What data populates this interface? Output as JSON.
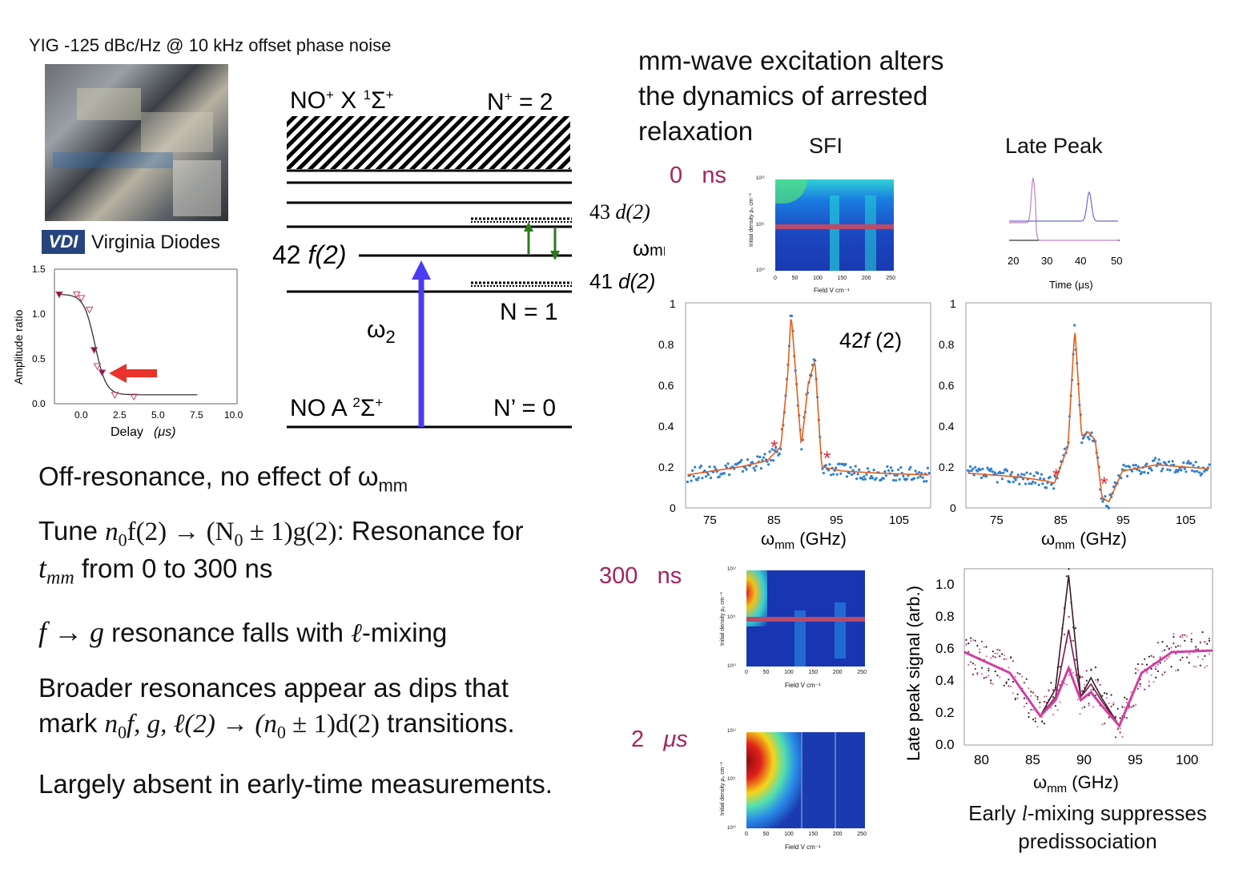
{
  "left": {
    "yig_label": "YIG -125 dBc/Hz @ 10 kHz offset phase noise",
    "vdi_logo": "VDI",
    "vdi_text": "Virginia Diodes",
    "amp_chart": {
      "ylabel": "Amplitude ratio",
      "xlabel": "Delay",
      "xlabel_unit": "(μs)",
      "yticks": [
        "1.5",
        "1.0",
        "0.5",
        "0.0"
      ],
      "xticks": [
        "0.0",
        "2.5",
        "5.0",
        "7.5",
        "10.0"
      ]
    }
  },
  "chart_data": [
    {
      "type": "scatter",
      "ylabel": "Amplitude ratio",
      "xlabel": "Delay (μs)",
      "xlim": [
        -1.5,
        10.0
      ],
      "ylim": [
        0.0,
        1.5
      ],
      "series": [
        {
          "name": "",
          "x": [
            -1.2,
            -0.1,
            0.2,
            0.7,
            1.0,
            1.2,
            1.5,
            2.3,
            3.5
          ],
          "y": [
            1.22,
            1.22,
            1.18,
            1.05,
            0.6,
            0.42,
            0.35,
            0.1,
            0.08
          ]
        }
      ]
    },
    {
      "type": "line",
      "xlabel": "ωmm (GHz)",
      "xlim": [
        72,
        108
      ],
      "ylim": [
        0,
        1
      ],
      "series": [
        {
          "name": "",
          "x": [
            72,
            80,
            84,
            86,
            87,
            87.5,
            89,
            90,
            91,
            92,
            95,
            100,
            108
          ],
          "y": [
            0.16,
            0.2,
            0.23,
            0.3,
            0.65,
            0.95,
            0.3,
            0.6,
            0.72,
            0.2,
            0.18,
            0.17,
            0.16
          ]
        }
      ]
    },
    {
      "type": "line",
      "xlabel": "ωmm (GHz)",
      "xlim": [
        72,
        108
      ],
      "ylim": [
        0,
        1
      ],
      "series": [
        {
          "name": "",
          "x": [
            72,
            80,
            84,
            85,
            87,
            88,
            89,
            90,
            91,
            92,
            93,
            95,
            100,
            108
          ],
          "y": [
            0.17,
            0.15,
            0.13,
            0.12,
            0.3,
            0.88,
            0.35,
            0.37,
            0.33,
            0.05,
            0.03,
            0.18,
            0.21,
            0.19
          ]
        }
      ]
    },
    {
      "type": "line",
      "ylabel": "Late peak signal (arb.)",
      "xlabel": "ωmm (GHz)",
      "xlim": [
        77.5,
        102
      ],
      "ylim": [
        0.0,
        1.1
      ],
      "series": [
        {
          "name": "",
          "x": [
            77.5,
            82,
            85,
            86.5,
            87.8,
            89,
            90,
            91,
            92.8,
            95,
            98,
            102
          ],
          "y": [
            0.58,
            0.45,
            0.18,
            0.35,
            1.06,
            0.3,
            0.42,
            0.3,
            0.12,
            0.45,
            0.58,
            0.59
          ]
        },
        {
          "name": "",
          "x": [
            77.5,
            82,
            85,
            86.5,
            87.8,
            89,
            90,
            91,
            92.8,
            95,
            98,
            102
          ],
          "y": [
            0.58,
            0.45,
            0.18,
            0.3,
            0.72,
            0.3,
            0.38,
            0.28,
            0.12,
            0.45,
            0.58,
            0.59
          ]
        },
        {
          "name": "",
          "x": [
            77.5,
            82,
            85,
            86.5,
            87.8,
            89,
            90,
            91,
            92.8,
            95,
            98,
            102
          ],
          "y": [
            0.58,
            0.45,
            0.18,
            0.28,
            0.48,
            0.28,
            0.33,
            0.25,
            0.12,
            0.45,
            0.58,
            0.59
          ]
        }
      ]
    }
  ],
  "energy": {
    "top_left": "NO",
    "top_left_sup": "+",
    "top_left_state": " X ",
    "top_left_term_sup": "1",
    "top_left_sigma": "Σ",
    "top_left_sigma_sup": "+",
    "top_right": "N",
    "top_right_sup": "+",
    "top_right_eq": " = 2",
    "level_43": "43",
    "level_43_d": "d(2)",
    "omega_mm": "ω",
    "omega_mm_sub": "mm",
    "level_42_num": "42",
    "level_42_f": "f(2)",
    "level_41": "41",
    "level_41_d": "d(2)",
    "n1": "N = 1",
    "omega2": "ω",
    "omega2_sub": "2",
    "bottom_left": "NO A ",
    "bottom_term_sup": "2",
    "bottom_sigma": "Σ",
    "bottom_sigma_sup": "+",
    "bottom_right": "N’ = 0"
  },
  "right": {
    "title_line1": "mm-wave excitation alters",
    "title_line2": "the dynamics of arrested",
    "title_line3": "relaxation",
    "sfi_label": "SFI",
    "late_peak_label": "Late Peak",
    "t0_value": "0",
    "t0_unit": "ns",
    "t300_value": "300",
    "t300_unit": "ns",
    "t2_value": "2",
    "t2_unit": "μs",
    "hmap_ylabel": "Initial density ρ₀ cm⁻³",
    "hmap_xlabel": "Field  V cm⁻¹",
    "hmap_xticks": [
      "0",
      "50",
      "100",
      "150",
      "200",
      "250"
    ],
    "hmap_yticks": [
      "10¹²",
      "10¹¹",
      "10¹⁰"
    ],
    "late_xticks": [
      "20",
      "30",
      "40",
      "50"
    ],
    "late_xlabel": "Time (μs)",
    "spec_label_num": "42",
    "spec_label_f": "f",
    "spec_label_rest": " (2)",
    "spec_yticks": [
      "1",
      "0.8",
      "0.6",
      "0.4",
      "0.2",
      "0"
    ],
    "spec_xticks": [
      "75",
      "85",
      "95",
      "105"
    ],
    "spec_xlabel_omega": "ω",
    "spec_xlabel_sub": "mm",
    "spec_xlabel_unit": " (GHz)",
    "late_ylabel": "Late peak signal (arb.)",
    "late_yticks": [
      "1.0",
      "0.8",
      "0.6",
      "0.4",
      "0.2",
      "0.0"
    ],
    "late_spec_xticks": [
      "80",
      "85",
      "90",
      "95",
      "100"
    ],
    "late_spec_xlabel_omega": "ω",
    "late_spec_xlabel_sub": "mm",
    "late_spec_xlabel_unit": "  (GHz)",
    "caption_line1_a": "Early ",
    "caption_line1_l": "l",
    "caption_line1_b": "-mixing suppresses",
    "caption_line2": "predissociation"
  },
  "body": {
    "line1_a": "Off-resonance, no effect of ω",
    "line1_sub": "mm",
    "line2_a": "Tune ",
    "line2_n0": "n",
    "line2_n0_sub": "0",
    "line2_b": "f(2) → (N",
    "line2_N0_sub": "0",
    "line2_c": " ± 1)g(2)",
    "line2_d": ": Resonance for",
    "line3_t": "t",
    "line3_t_sub": "mm",
    "line3_b": " from 0 to 300 ns",
    "line4_a": "f → g",
    "line4_b": " resonance falls with ",
    "line4_l": "ℓ",
    "line4_c": "-mixing",
    "line5": "Broader resonances appear as dips that",
    "line6_a": "mark ",
    "line6_n": "n",
    "line6_n_sub": "0",
    "line6_b": "f, g, ℓ(2) → (n",
    "line6_n2_sub": "0",
    "line6_c": " ± 1)d(2)",
    "line6_d": " transitions.",
    "line7": "Largely absent in early-time measurements."
  }
}
